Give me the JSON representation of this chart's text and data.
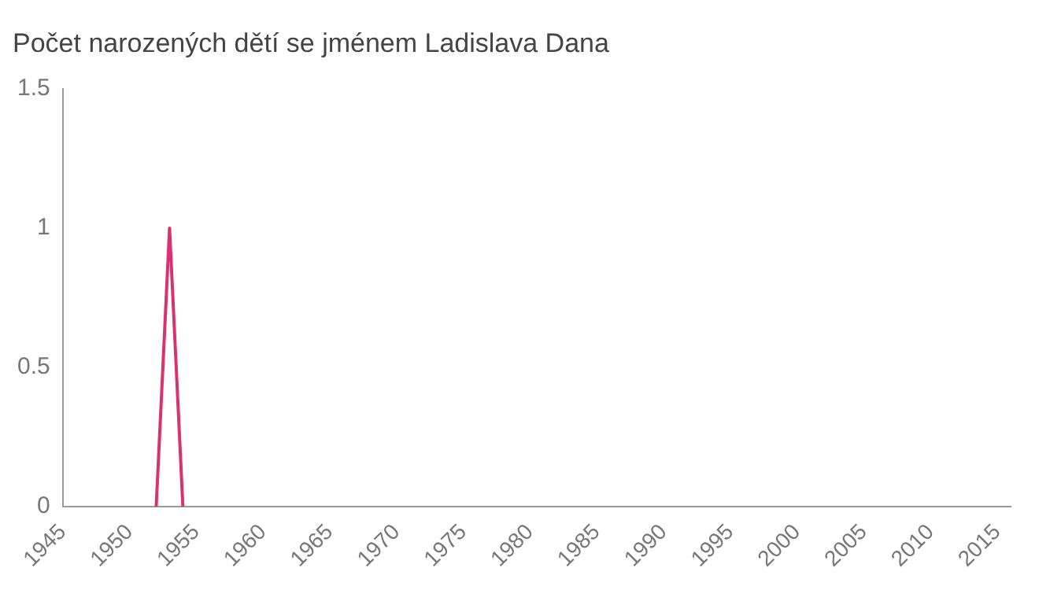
{
  "chart_data": {
    "type": "line",
    "title": "Počet narozených dětí se jménem Ladislava Dana",
    "x": [
      1952,
      1953,
      1954
    ],
    "series": [
      {
        "color": "#d9336f",
        "values": [
          0,
          1,
          0
        ]
      }
    ],
    "xlim": [
      1945,
      2016
    ],
    "xticks": [
      1945,
      1950,
      1955,
      1960,
      1965,
      1970,
      1975,
      1980,
      1985,
      1990,
      1995,
      2000,
      2005,
      2010,
      2015
    ],
    "ylim": [
      0,
      1.5
    ],
    "yticks": [
      0,
      0.5,
      1,
      1.5
    ],
    "grid": false,
    "legend": false,
    "marker": "none",
    "line_style": "solid"
  }
}
